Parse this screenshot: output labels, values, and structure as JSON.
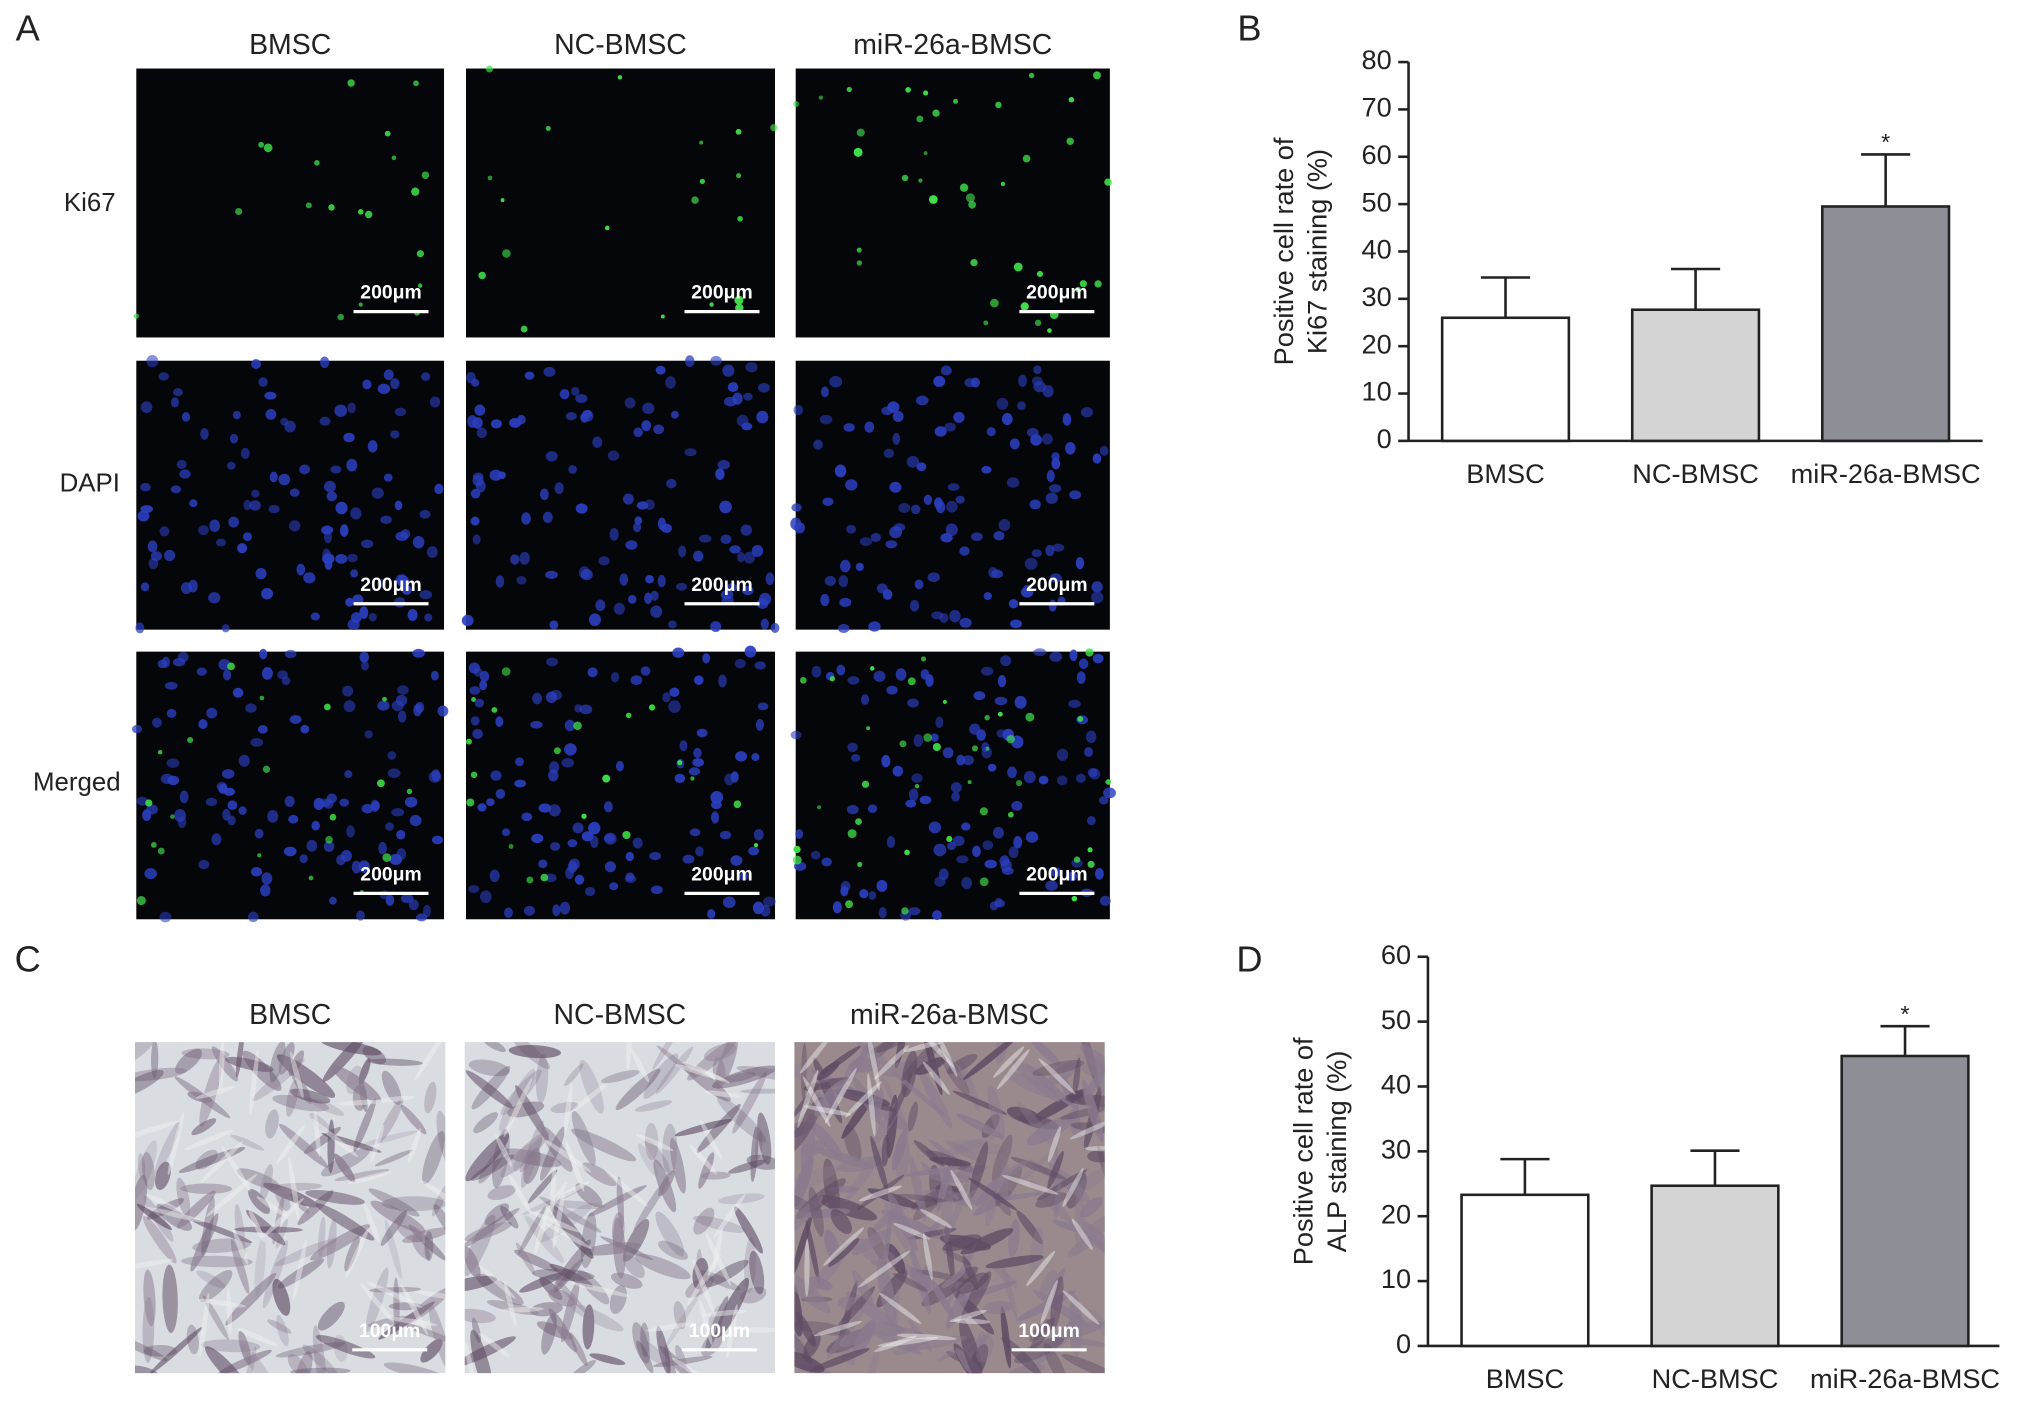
{
  "panels": [
    {
      "label": "A",
      "columns": [
        "BMSC",
        "NC-BMSC",
        "miR-26a-BMSC"
      ],
      "rows": [
        "Ki67",
        "DAPI",
        "Merged"
      ],
      "scale_bar": "200μm"
    },
    {
      "label": "C",
      "columns": [
        "BMSC",
        "NC-BMSC",
        "miR-26a-BMSC"
      ],
      "scale_bar": "100μm"
    }
  ],
  "chart_data": [
    {
      "type": "bar",
      "panel_label": "B",
      "ylabel": [
        "Positive cell rate of",
        "Ki67 staining (%)"
      ],
      "categories": [
        "BMSC",
        "NC-BMSC",
        "miR-26a-BMSC"
      ],
      "values": [
        26,
        27.7,
        49.5
      ],
      "errors": [
        8.5,
        8.6,
        11
      ],
      "colors": [
        "#ffffff",
        "#d4d4d4",
        "#8e8e96"
      ],
      "ylim": [
        0,
        80
      ],
      "yticks": [
        0,
        10,
        20,
        30,
        40,
        50,
        60,
        70,
        80
      ],
      "annotations": [
        {
          "text": "*",
          "category": 2
        }
      ]
    },
    {
      "type": "bar",
      "panel_label": "D",
      "ylabel": [
        "Positive cell rate of",
        "ALP staining (%)"
      ],
      "categories": [
        "BMSC",
        "NC-BMSC",
        "miR-26a-BMSC"
      ],
      "values": [
        23.3,
        24.7,
        44.7
      ],
      "errors": [
        5.5,
        5.4,
        4.6
      ],
      "colors": [
        "#ffffff",
        "#d4d4d4",
        "#8e8e96"
      ],
      "ylim": [
        0,
        60
      ],
      "yticks": [
        0,
        10,
        20,
        30,
        40,
        50,
        60
      ],
      "annotations": [
        {
          "text": "*",
          "category": 2
        }
      ]
    }
  ]
}
